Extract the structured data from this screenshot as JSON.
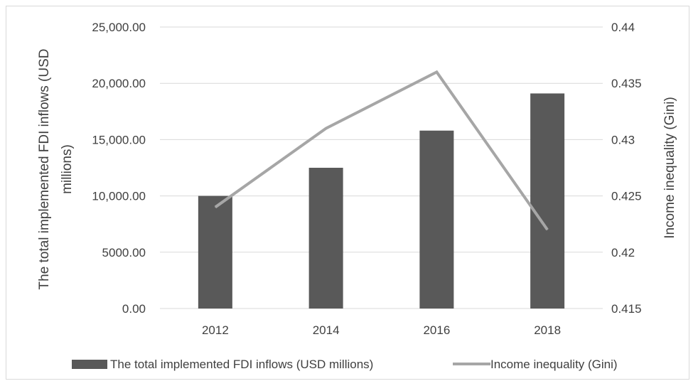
{
  "chart_data": {
    "type": "bar",
    "categories": [
      "2012",
      "2014",
      "2016",
      "2018"
    ],
    "series": [
      {
        "name": "The total implemented FDI inflows (USD millions)",
        "type": "bar",
        "axis": "left",
        "color": "#595959",
        "values": [
          10000,
          12500,
          15800,
          19100
        ]
      },
      {
        "name": "Income inequality (Gini)",
        "type": "line",
        "axis": "right",
        "color": "#a6a6a6",
        "values": [
          0.424,
          0.431,
          0.436,
          0.422
        ]
      }
    ],
    "ylabel_left_line1": "The total implemented FDI inflows (USD",
    "ylabel_left_line2": "millions)",
    "ylabel_right": "Income inequality (Gini)",
    "ylim_left": [
      0,
      25000
    ],
    "ylim_right": [
      0.415,
      0.44
    ],
    "yticks_left": [
      "0.00",
      "5000.00",
      "10,000.00",
      "15,000.00",
      "20,000.00",
      "25,000.00"
    ],
    "yticks_right": [
      "0.415",
      "0.42",
      "0.425",
      "0.43",
      "0.435",
      "0.44"
    ],
    "grid": true,
    "legend_position": "bottom"
  }
}
